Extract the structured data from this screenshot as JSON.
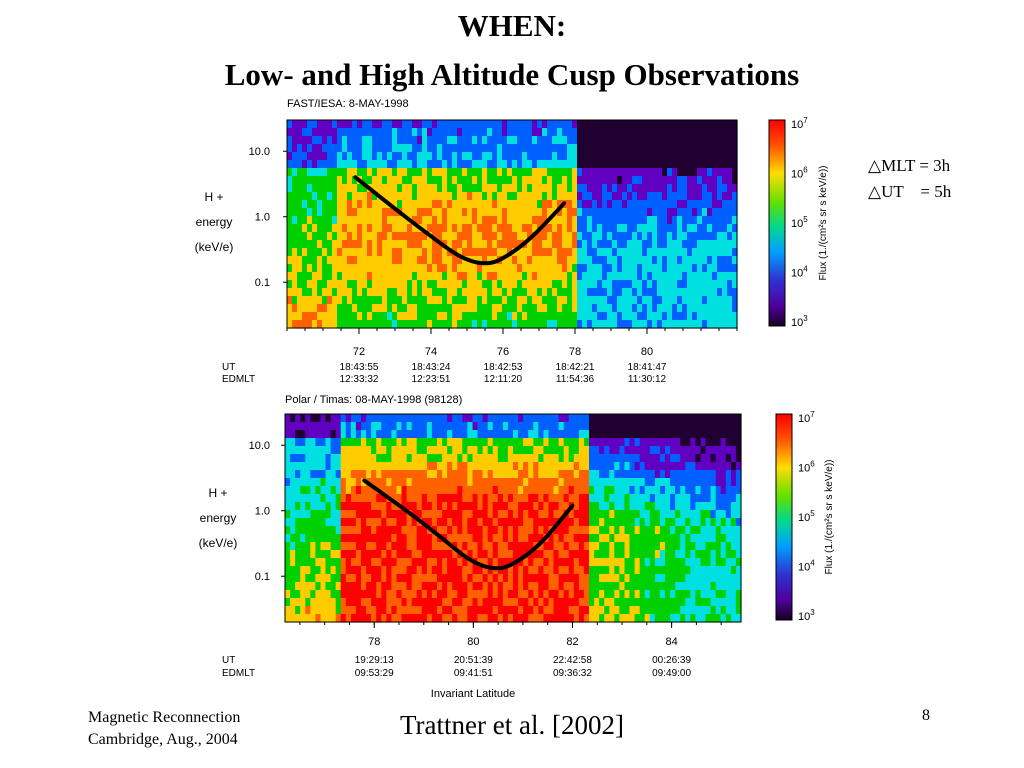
{
  "slide": {
    "title_line1": "WHEN:",
    "title_line2": "Low- and High Altitude Cusp Observations",
    "note_mlt": "△MLT = 3h",
    "note_ut": "△UT    = 5h",
    "footer_line1": "Magnetic Reconnection",
    "footer_line2": "Cambridge, Aug., 2004",
    "citation": "Trattner et al. [2002]",
    "page_number": "8"
  },
  "chart_data": [
    {
      "type": "heatmap",
      "title": "FAST/IESA:  8-MAY-1998",
      "ylabel_lines": [
        "H +",
        "energy",
        "(keV/e)"
      ],
      "yticks": [
        "10.0",
        "1.0",
        "0.1"
      ],
      "ytick_values": [
        10.0,
        1.0,
        0.1
      ],
      "ylim": [
        0.02,
        30
      ],
      "yscale": "log",
      "xlim": [
        70.0,
        82.5
      ],
      "x_ticks": [
        "72",
        "74",
        "76",
        "78",
        "80"
      ],
      "x_tick_values": [
        72,
        74,
        76,
        78,
        80
      ],
      "row_labels": [
        "UT",
        "EDMLT"
      ],
      "ut_labels": [
        "18:43:55",
        "18:43:24",
        "18:42:53",
        "18:42:21",
        "18:41:47"
      ],
      "edmlt_labels": [
        "12:33:32",
        "12:23:51",
        "12:11:20",
        "11:54:36",
        "11:30:12"
      ],
      "cusp_curve": {
        "x": [
          71.9,
          73.5,
          75.3,
          76.5,
          77.7
        ],
        "y": [
          4.0,
          0.8,
          0.15,
          0.32,
          1.6
        ]
      },
      "colorbar": {
        "label": "Flux (1./(cm²s sr s keV/e))",
        "ticks": [
          "10",
          "10",
          "10",
          "10",
          "10"
        ],
        "exponents": [
          "7",
          "6",
          "5",
          "4",
          "3"
        ],
        "tick_values": [
          10000000.0,
          1000000.0,
          100000.0,
          10000.0,
          1000.0
        ]
      }
    },
    {
      "type": "heatmap",
      "title": "Polar / Timas:   08-MAY-1998   (98128)",
      "ylabel_lines": [
        "H +",
        "energy",
        "(keV/e)"
      ],
      "yticks": [
        "10.0",
        "1.0",
        "0.1"
      ],
      "ytick_values": [
        10.0,
        1.0,
        0.1
      ],
      "ylim": [
        0.02,
        30
      ],
      "yscale": "log",
      "xlim": [
        76.2,
        85.4
      ],
      "x_ticks": [
        "78",
        "80",
        "82",
        "84"
      ],
      "x_tick_values": [
        78,
        80,
        82,
        84
      ],
      "row_labels": [
        "UT",
        "EDMLT"
      ],
      "ut_labels": [
        "19:29:13",
        "20:51:39",
        "22:42:58",
        "00:26:39"
      ],
      "edmlt_labels": [
        "09:53:29",
        "09:41:51",
        "09:36:32",
        "09:49:00"
      ],
      "xlabel": "Invariant Latitude",
      "cusp_curve": {
        "x": [
          77.8,
          79.0,
          80.3,
          81.2,
          82.0
        ],
        "y": [
          2.9,
          0.65,
          0.1,
          0.22,
          1.2
        ]
      },
      "colorbar": {
        "label": "Flux (1./(cm²s sr s keV/e))",
        "ticks": [
          "10",
          "10",
          "10",
          "10",
          "10"
        ],
        "exponents": [
          "7",
          "6",
          "5",
          "4",
          "3"
        ],
        "tick_values": [
          10000000.0,
          1000000.0,
          100000.0,
          10000.0,
          1000.0
        ]
      }
    }
  ],
  "colors": {
    "spectrogram_scale": [
      "#ff0000",
      "#ff6000",
      "#ffcc00",
      "#00d000",
      "#00e0e0",
      "#0060ff",
      "#6000c0",
      "#200030"
    ]
  }
}
